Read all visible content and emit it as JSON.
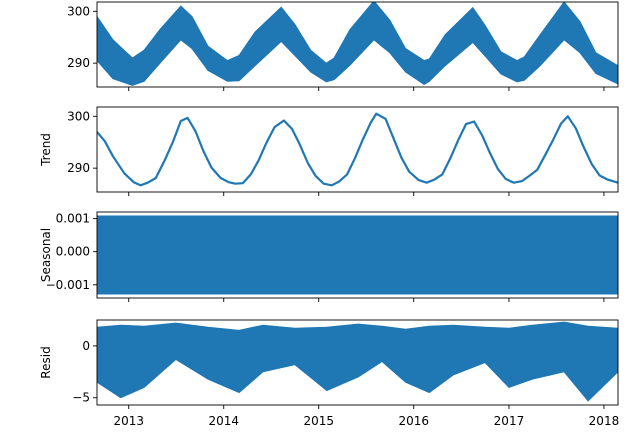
{
  "chart_data": [
    {
      "type": "line",
      "panel": "observed",
      "ylabel": "",
      "ylim": [
        285.4,
        301.8
      ],
      "yticks": [
        290,
        300
      ],
      "x_ticks": [
        "2013",
        "2014",
        "2015",
        "2016",
        "2017",
        "2018"
      ],
      "show_x_tick_labels": false,
      "xlim": [
        "2012-09-01",
        "2018-02-24"
      ],
      "band": true,
      "x": [
        "2012-09-01",
        "2012-11-01",
        "2013-01-15",
        "2013-03-01",
        "2013-05-01",
        "2013-07-20",
        "2013-09-01",
        "2013-11-01",
        "2014-01-15",
        "2014-03-01",
        "2014-05-01",
        "2014-08-10",
        "2014-10-01",
        "2014-12-01",
        "2015-01-30",
        "2015-03-01",
        "2015-05-01",
        "2015-08-01",
        "2015-10-01",
        "2015-12-01",
        "2016-02-10",
        "2016-03-01",
        "2016-05-01",
        "2016-08-15",
        "2016-10-01",
        "2016-12-01",
        "2017-02-01",
        "2017-03-01",
        "2017-05-01",
        "2017-08-01",
        "2017-10-01",
        "2017-12-01",
        "2018-02-24"
      ],
      "low": [
        290.5,
        287.0,
        285.7,
        286.5,
        290.0,
        294.5,
        292.8,
        288.6,
        286.5,
        286.6,
        289.5,
        294.2,
        291.5,
        288.3,
        286.4,
        286.8,
        289.6,
        294.5,
        292.0,
        288.3,
        285.9,
        286.5,
        289.5,
        294.0,
        291.4,
        287.9,
        286.4,
        286.7,
        289.5,
        294.5,
        292.0,
        288.0,
        286.0
      ],
      "high": [
        299.0,
        294.5,
        291.0,
        292.5,
        296.5,
        301.0,
        299.0,
        293.3,
        290.5,
        291.5,
        296.0,
        300.8,
        297.5,
        292.5,
        290.0,
        291.0,
        296.5,
        302.0,
        298.3,
        292.8,
        290.5,
        290.8,
        295.5,
        300.7,
        297.3,
        292.2,
        290.5,
        291.2,
        295.5,
        301.8,
        298.0,
        292.0,
        289.5
      ],
      "series": [
        {
          "values": [
            294.5,
            290.7,
            288.4,
            289.5,
            293.3,
            297.8,
            295.9,
            291.0,
            288.5,
            289.1,
            292.8,
            297.5,
            294.5,
            290.4,
            288.2,
            288.9,
            293.0,
            298.2,
            295.1,
            290.6,
            288.2,
            288.6,
            292.5,
            297.4,
            294.3,
            290.0,
            288.4,
            289.0,
            292.5,
            298.1,
            295.0,
            290.0,
            287.8
          ]
        }
      ]
    },
    {
      "type": "line",
      "panel": "trend",
      "ylabel": "Trend",
      "ylim": [
        285.4,
        301.8
      ],
      "yticks": [
        290,
        300
      ],
      "x_ticks": [
        "2013",
        "2014",
        "2015",
        "2016",
        "2017",
        "2018"
      ],
      "show_x_tick_labels": false,
      "xlim": [
        "2012-09-01",
        "2018-02-24"
      ],
      "x": [
        "2012-09-01",
        "2012-10-01",
        "2012-11-01",
        "2012-12-15",
        "2013-01-20",
        "2013-02-15",
        "2013-03-15",
        "2013-04-15",
        "2013-05-20",
        "2013-06-20",
        "2013-07-20",
        "2013-08-15",
        "2013-09-15",
        "2013-10-15",
        "2013-11-15",
        "2013-12-20",
        "2014-01-20",
        "2014-02-15",
        "2014-03-15",
        "2014-04-15",
        "2014-05-15",
        "2014-06-15",
        "2014-07-15",
        "2014-08-20",
        "2014-09-20",
        "2014-10-20",
        "2014-11-20",
        "2014-12-20",
        "2015-01-20",
        "2015-02-20",
        "2015-03-20",
        "2015-04-20",
        "2015-05-20",
        "2015-06-20",
        "2015-07-20",
        "2015-08-10",
        "2015-09-15",
        "2015-10-15",
        "2015-11-15",
        "2015-12-15",
        "2016-01-20",
        "2016-02-20",
        "2016-03-20",
        "2016-04-20",
        "2016-05-20",
        "2016-06-20",
        "2016-07-20",
        "2016-08-20",
        "2016-09-20",
        "2016-10-20",
        "2016-11-20",
        "2016-12-20",
        "2017-01-20",
        "2017-02-20",
        "2017-03-20",
        "2017-04-20",
        "2017-05-20",
        "2017-06-20",
        "2017-07-20",
        "2017-08-15",
        "2017-09-15",
        "2017-10-15",
        "2017-11-15",
        "2017-12-15",
        "2018-01-15",
        "2018-02-24"
      ],
      "series": [
        {
          "values": [
            297.0,
            295.2,
            292.3,
            289.0,
            287.3,
            286.7,
            287.2,
            288.1,
            291.6,
            295.1,
            299.1,
            299.7,
            297.1,
            293.3,
            290.1,
            288.1,
            287.3,
            287.0,
            287.1,
            288.8,
            291.5,
            295.0,
            297.9,
            299.2,
            297.6,
            294.6,
            291.0,
            288.5,
            287.0,
            286.7,
            287.4,
            288.8,
            291.9,
            295.6,
            298.8,
            300.5,
            299.5,
            295.8,
            292.0,
            289.3,
            287.7,
            287.2,
            287.8,
            288.8,
            291.8,
            295.4,
            298.5,
            299.0,
            296.3,
            292.9,
            289.8,
            287.9,
            287.2,
            287.5,
            288.5,
            289.7,
            292.5,
            295.5,
            298.6,
            300.0,
            297.7,
            294.1,
            290.8,
            288.6,
            287.8,
            287.2
          ]
        }
      ]
    },
    {
      "type": "area",
      "panel": "seasonal",
      "ylabel": "Seasonal",
      "ylim": [
        -0.0014,
        0.0012
      ],
      "yticks": [
        -0.001,
        0.0,
        0.001
      ],
      "ytick_labels": [
        "−0.001",
        "0.000",
        "0.001"
      ],
      "x_ticks": [
        "2013",
        "2014",
        "2015",
        "2016",
        "2017",
        "2018"
      ],
      "show_x_tick_labels": false,
      "xlim": [
        "2012-09-01",
        "2018-02-24"
      ],
      "band": true,
      "x": [
        "2012-09-01",
        "2018-02-24"
      ],
      "low": [
        -0.00128,
        -0.00128
      ],
      "high": [
        0.00108,
        0.00108
      ]
    },
    {
      "type": "area",
      "panel": "resid",
      "ylabel": "Resid",
      "ylim": [
        -5.7,
        2.5
      ],
      "yticks": [
        -5,
        0
      ],
      "ytick_labels": [
        "−5",
        "0"
      ],
      "x_ticks": [
        "2013",
        "2014",
        "2015",
        "2016",
        "2017",
        "2018"
      ],
      "show_x_tick_labels": true,
      "xlim": [
        "2012-09-01",
        "2018-02-24"
      ],
      "band": true,
      "x": [
        "2012-09-01",
        "2012-12-01",
        "2013-03-01",
        "2013-07-01",
        "2013-11-01",
        "2014-03-01",
        "2014-06-01",
        "2014-10-01",
        "2015-02-01",
        "2015-06-01",
        "2015-09-01",
        "2015-12-01",
        "2016-03-01",
        "2016-06-01",
        "2016-10-01",
        "2017-01-01",
        "2017-04-01",
        "2017-08-01",
        "2017-11-01",
        "2018-02-24"
      ],
      "low": [
        -3.5,
        -5.0,
        -4.0,
        -1.3,
        -3.2,
        -4.5,
        -2.5,
        -1.8,
        -4.3,
        -3.0,
        -1.5,
        -3.5,
        -4.5,
        -2.8,
        -1.6,
        -4.0,
        -3.2,
        -2.5,
        -5.3,
        -2.5
      ],
      "high": [
        1.8,
        2.0,
        1.9,
        2.2,
        1.8,
        1.5,
        2.0,
        1.7,
        1.8,
        2.1,
        1.9,
        1.6,
        1.9,
        2.0,
        1.8,
        1.7,
        2.0,
        2.3,
        1.9,
        1.7
      ]
    }
  ]
}
